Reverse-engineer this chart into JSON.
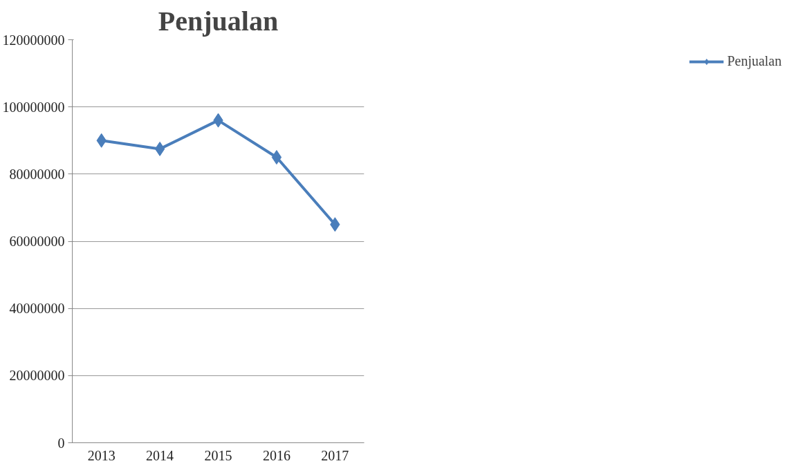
{
  "chart_data": {
    "type": "line",
    "title": "Penjualan",
    "categories": [
      "2013",
      "2014",
      "2015",
      "2016",
      "2017"
    ],
    "series": [
      {
        "name": "Penjualan",
        "color": "#4a7ebb",
        "values": [
          90000000,
          87500000,
          96000000,
          85000000,
          65000000
        ]
      }
    ],
    "ylim": [
      0,
      120000000
    ],
    "yticks": [
      0,
      20000000,
      40000000,
      60000000,
      80000000,
      100000000,
      120000000
    ],
    "grid": "y",
    "legend": "right",
    "marker": "diamond",
    "line_style": "solid"
  }
}
